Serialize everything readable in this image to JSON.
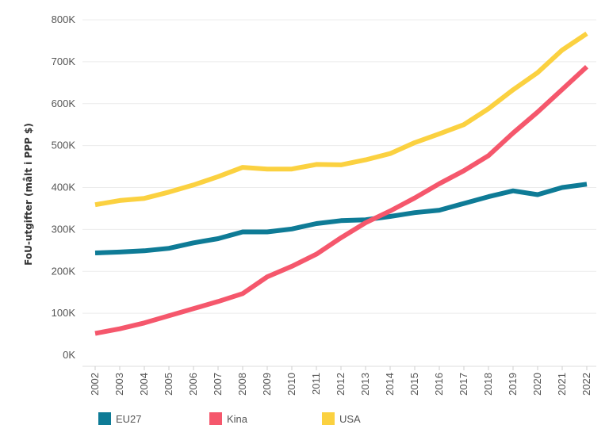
{
  "chart_data": {
    "type": "line",
    "title": "",
    "xlabel": "",
    "ylabel": "FoU-utgifter (målt i PPP $)",
    "ylim": [
      0,
      800000
    ],
    "yticks": [
      0,
      100000,
      200000,
      300000,
      400000,
      500000,
      600000,
      700000,
      800000
    ],
    "ytick_labels": [
      "0K",
      "100K",
      "200K",
      "300K",
      "400K",
      "500K",
      "600K",
      "700K",
      "800K"
    ],
    "categories": [
      "2002",
      "2003",
      "2004",
      "2005",
      "2006",
      "2007",
      "2008",
      "2009",
      "2010",
      "2011",
      "2012",
      "2013",
      "2014",
      "2015",
      "2016",
      "2017",
      "2018",
      "2019",
      "2020",
      "2021",
      "2022"
    ],
    "series": [
      {
        "name": "EU27",
        "color": "#0e7b96",
        "values": [
          244000,
          246000,
          249000,
          255000,
          268000,
          278000,
          294000,
          294000,
          301000,
          314000,
          321000,
          323000,
          331000,
          340000,
          346000,
          362000,
          378000,
          392000,
          383000,
          400000,
          408000
        ]
      },
      {
        "name": "Kina",
        "color": "#f5576c",
        "values": [
          52000,
          63000,
          77000,
          94000,
          111000,
          128000,
          147000,
          187000,
          212000,
          241000,
          280000,
          316000,
          344000,
          375000,
          409000,
          440000,
          476000,
          530000,
          580000,
          634000,
          688000
        ]
      },
      {
        "name": "USA",
        "color": "#fbd140",
        "values": [
          359000,
          369000,
          374000,
          389000,
          406000,
          426000,
          448000,
          444000,
          444000,
          455000,
          454000,
          466000,
          481000,
          507000,
          528000,
          550000,
          588000,
          633000,
          674000,
          728000,
          767000
        ]
      }
    ],
    "grid": true,
    "legend_position": "bottom-left"
  }
}
